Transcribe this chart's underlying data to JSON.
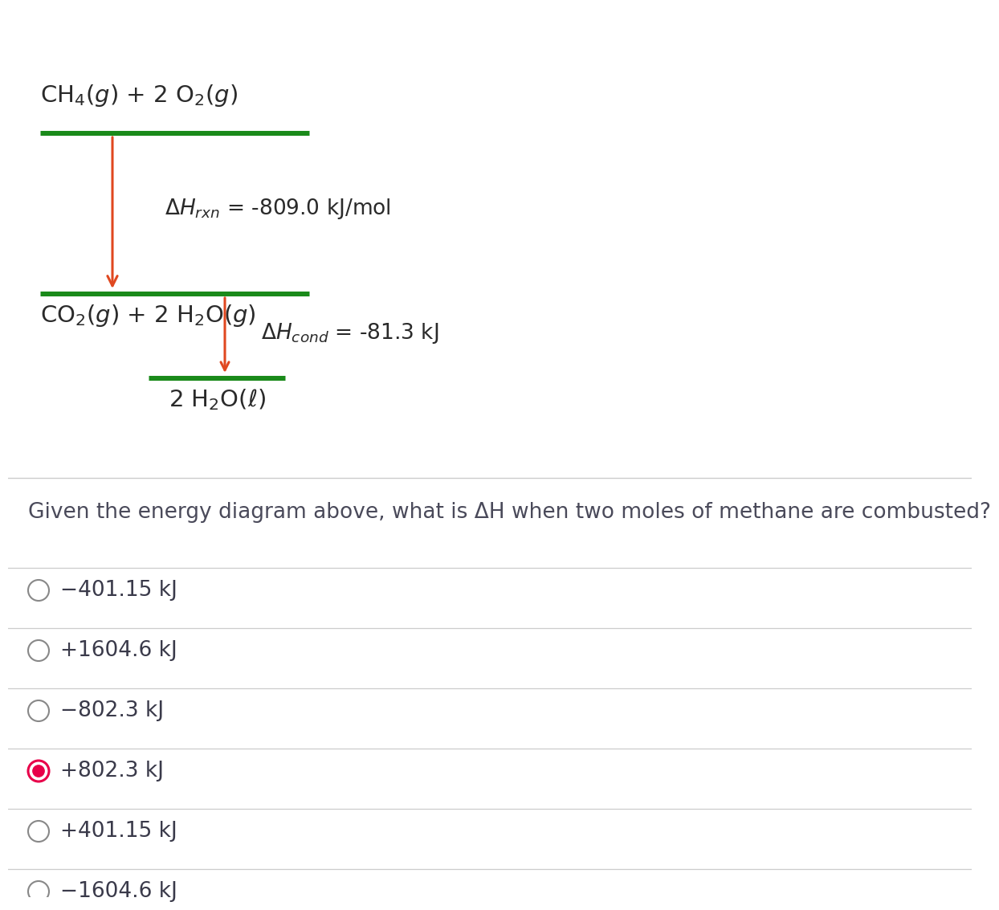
{
  "bg_color": "#ffffff",
  "green_color": "#1a8a1a",
  "arrow_color": "#e04820",
  "text_color": "#2a2a2a",
  "question_color": "#4a4a5a",
  "option_color": "#3a3a4a",
  "divider_color": "#cccccc",
  "label_top": "CH$_4$($g$) + 2 O$_2$($g$)",
  "label_mid": "CO$_2$($g$) + 2 H$_2$O($g$)",
  "label_bot": "2 H$_2$O($\\ell$)",
  "dh_rxn_label": "$\\Delta H_{\\mathit{rxn}}$ = -809.0 kJ/mol",
  "dh_cond_label": "$\\Delta H_{\\mathit{cond}}$ = -81.3 kJ",
  "question": "Given the energy diagram above, what is ΔH when two moles of methane are combusted?",
  "options": [
    "−401.15 kJ",
    "+1604.6 kJ",
    "−802.3 kJ",
    "+802.3 kJ",
    "+401.15 kJ",
    "−1604.6 kJ"
  ],
  "selected_option": 3,
  "sel_color": "#e8004a",
  "unsel_edge": "#888888"
}
